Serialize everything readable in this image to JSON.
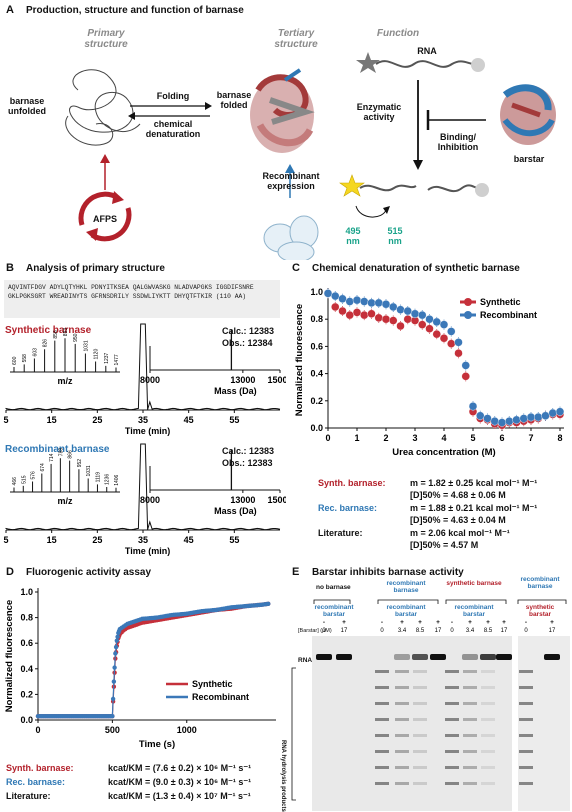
{
  "panel_a": {
    "letter": "A",
    "title": "Production, structure and function of barnase",
    "primary_structure": "Primary structure",
    "tertiary_structure": "Tertiary structure",
    "function": "Function",
    "unfolded": "barnase unfolded",
    "folded": "barnase folded",
    "folding": "Folding",
    "denaturation": "chemical denaturation",
    "afps": "AFPS",
    "recombinant_expression": "Recombinant expression",
    "rna": "RNA",
    "enzymatic_activity": "Enzymatic activity",
    "binding_inhibition": "Binding/ Inhibition",
    "barstar": "barstar",
    "wl_ex": "495",
    "wl_em": "515",
    "nm": "nm"
  },
  "panel_b": {
    "letter": "B",
    "title": "Analysis of primary structure",
    "sequence": "AQVINTFDGV ADYLQTYHKL PDNYITKSEA QALGWVASKG NLADVAPGKS IGGDIFSNRE GKLPGKSGRT WREADINYTS GFRNSDRILY SSDWLIYKTT DHYQTFTKIR (110 AA)",
    "synthetic_label": "Synthetic barnase",
    "recombinant_label": "Recombinant barnase",
    "calc_label": "Calc.:",
    "calc_value": "12383",
    "obs_label": "Obs.:",
    "obs_syn": "12384",
    "obs_rec": "12383",
    "mz_label": "m/z",
    "mass_label": "Mass (Da)",
    "time_label": "Time (min)",
    "syn_mz_ticks": [
      "600",
      "558",
      "603",
      "826",
      "856",
      "893",
      "950",
      "1031",
      "1120",
      "1237",
      "1477"
    ],
    "rec_mz_ticks": [
      "466",
      "515",
      "576",
      "674",
      "714",
      "788",
      "866",
      "952",
      "1031",
      "1119",
      "1236",
      "1406"
    ],
    "mass_ticks": [
      "8000",
      "13000",
      "15000"
    ],
    "time_ticks": [
      "5",
      "15",
      "25",
      "35",
      "45",
      "55"
    ]
  },
  "panel_c": {
    "letter": "C",
    "title": "Chemical denaturation of synthetic barnase",
    "synth_label": "Synth. barnase:",
    "synth_m": "m = 1.82 ± 0.25 kcal mol⁻¹ M⁻¹",
    "synth_d": "[D]50% = 4.68 ± 0.06 M",
    "rec_label": "Rec. barnase:",
    "rec_m": "m = 1.88 ± 0.21 kcal mol⁻¹ M⁻¹",
    "rec_d": "[D]50% = 4.63 ± 0.04 M",
    "lit_label": "Literature:",
    "lit_m": "m = 2.06 kcal mol⁻¹ M⁻¹",
    "lit_d": "[D]50% = 4.57 M"
  },
  "panel_d": {
    "letter": "D",
    "title": "Fluorogenic activity assay",
    "synth_label": "Synth. barnase:",
    "synth_k": "kcat/KM = (7.6 ± 0.2) × 10⁶ M⁻¹ s⁻¹",
    "rec_label": "Rec. barnase:",
    "rec_k": "kcat/KM = (9.0 ± 0.3) × 10⁶ M⁻¹ s⁻¹",
    "lit_label": "Literature:",
    "lit_k": "kcat/KM = (1.3 ± 0.4) × 10⁷ M⁻¹ s⁻¹"
  },
  "panel_e": {
    "letter": "E",
    "title": "Barstar inhibits barnase activity",
    "no_barnase": "no barnase",
    "recombinant_barstar": "recombinant barstar",
    "recombinant_barnase": "recombinant barnase",
    "synthetic_barnase": "synthetic barnase",
    "synthetic_barstar": "synthetic barstar",
    "barstar_conc": "[Barstar] (µM)",
    "rna": "RNA",
    "hydrolysis": "RNA hydrolysis products",
    "lane_signs": [
      "-",
      "+",
      "-",
      "+",
      "+",
      "+",
      "-",
      "+",
      "+",
      "+",
      "-",
      "+"
    ],
    "lane_concs": [
      "0",
      "17",
      "0",
      "3.4",
      "8.5",
      "17",
      "0",
      "3.4",
      "8.5",
      "17",
      "0",
      "17"
    ]
  },
  "chart_data": [
    {
      "type": "scatter",
      "panel": "C",
      "xlabel": "Urea concentration (M)",
      "ylabel": "Normalized fluorescence",
      "xlim": [
        0,
        8
      ],
      "ylim": [
        0,
        1.0
      ],
      "x_ticks": [
        0,
        1,
        2,
        3,
        4,
        5,
        6,
        7,
        8
      ],
      "y_ticks": [
        0,
        0.2,
        0.4,
        0.6,
        0.8,
        1.0
      ],
      "legend_position": "top-right",
      "series": [
        {
          "name": "Synthetic",
          "color": "#c5303a",
          "x": [
            0,
            0.25,
            0.5,
            0.75,
            1,
            1.25,
            1.5,
            1.75,
            2,
            2.25,
            2.5,
            2.75,
            3,
            3.25,
            3.5,
            3.75,
            4,
            4.25,
            4.5,
            4.75,
            5,
            5.25,
            5.5,
            5.75,
            6,
            6.25,
            6.5,
            6.75,
            7,
            7.25,
            7.5,
            7.75,
            8
          ],
          "y": [
            0.99,
            0.89,
            0.86,
            0.83,
            0.85,
            0.83,
            0.84,
            0.81,
            0.8,
            0.79,
            0.75,
            0.8,
            0.79,
            0.76,
            0.73,
            0.69,
            0.66,
            0.62,
            0.55,
            0.38,
            0.12,
            0.07,
            0.06,
            0.03,
            0.02,
            0.04,
            0.04,
            0.05,
            0.06,
            0.07,
            0.09,
            0.1,
            0.1
          ]
        },
        {
          "name": "Recombinant",
          "color": "#3b78b8",
          "x": [
            0,
            0.25,
            0.5,
            0.75,
            1,
            1.25,
            1.5,
            1.75,
            2,
            2.25,
            2.5,
            2.75,
            3,
            3.25,
            3.5,
            3.75,
            4,
            4.25,
            4.5,
            4.75,
            5,
            5.25,
            5.5,
            5.75,
            6,
            6.25,
            6.5,
            6.75,
            7,
            7.25,
            7.5,
            7.75,
            8
          ],
          "y": [
            0.99,
            0.97,
            0.95,
            0.93,
            0.94,
            0.93,
            0.92,
            0.92,
            0.91,
            0.89,
            0.87,
            0.86,
            0.84,
            0.83,
            0.8,
            0.78,
            0.76,
            0.71,
            0.63,
            0.46,
            0.16,
            0.09,
            0.07,
            0.05,
            0.04,
            0.05,
            0.06,
            0.07,
            0.08,
            0.08,
            0.09,
            0.11,
            0.12
          ]
        }
      ]
    },
    {
      "type": "line",
      "panel": "D",
      "xlabel": "Time (s)",
      "ylabel": "Normalized fluorescence",
      "xlim": [
        0,
        1600
      ],
      "ylim": [
        0,
        1.0
      ],
      "x_ticks": [
        0,
        500,
        1000
      ],
      "y_ticks": [
        0,
        0.2,
        0.4,
        0.6,
        0.8,
        1.0
      ],
      "legend_position": "bottom-right",
      "series": [
        {
          "name": "Synthetic",
          "color": "#c5303a",
          "x": [
            0,
            100,
            200,
            300,
            400,
            500,
            510,
            520,
            530,
            540,
            550,
            575,
            600,
            650,
            700,
            800,
            900,
            1000,
            1100,
            1200,
            1300,
            1400,
            1500,
            1560
          ],
          "y": [
            0.03,
            0.03,
            0.03,
            0.03,
            0.03,
            0.03,
            0.26,
            0.48,
            0.58,
            0.64,
            0.67,
            0.7,
            0.72,
            0.74,
            0.76,
            0.78,
            0.8,
            0.82,
            0.84,
            0.86,
            0.87,
            0.89,
            0.9,
            0.91
          ]
        },
        {
          "name": "Recombinant",
          "color": "#3b78b8",
          "x": [
            0,
            100,
            200,
            300,
            400,
            500,
            510,
            520,
            530,
            540,
            550,
            575,
            600,
            650,
            700,
            800,
            900,
            1000,
            1100,
            1200,
            1300,
            1400,
            1500,
            1560
          ],
          "y": [
            0.03,
            0.03,
            0.03,
            0.03,
            0.03,
            0.03,
            0.3,
            0.52,
            0.62,
            0.68,
            0.71,
            0.73,
            0.75,
            0.77,
            0.79,
            0.8,
            0.82,
            0.83,
            0.85,
            0.86,
            0.88,
            0.89,
            0.9,
            0.91
          ]
        }
      ]
    }
  ]
}
